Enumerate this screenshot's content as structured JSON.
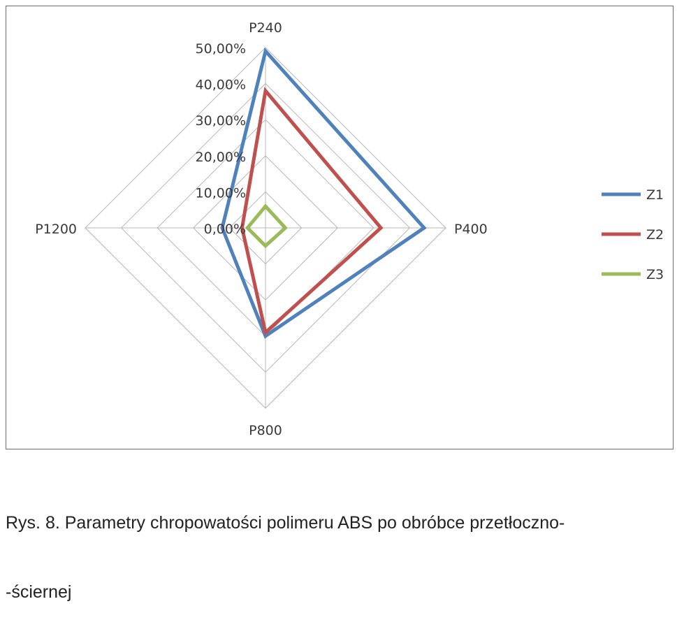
{
  "chart_data": {
    "type": "radar",
    "title": "",
    "categories": [
      "P240",
      "P400",
      "P800",
      "P1200"
    ],
    "series": [
      {
        "name": "Z1",
        "values": [
          49.0,
          44.0,
          30.0,
          12.0
        ],
        "color": "#4F81BD"
      },
      {
        "name": "Z2",
        "values": [
          38.0,
          32.0,
          29.0,
          6.5
        ],
        "color": "#C0504D"
      },
      {
        "name": "Z3",
        "values": [
          6.0,
          5.5,
          5.0,
          5.0
        ],
        "color": "#9BBB59"
      }
    ],
    "radial_ticks": [
      "0,00%",
      "10,00%",
      "20,00%",
      "30,00%",
      "40,00%",
      "50,00%"
    ],
    "rlim": [
      0,
      50
    ],
    "legend": "right",
    "grid": true
  },
  "caption": {
    "line1": "Rys. 8. Parametry chropowatości polimeru ABS po obróbce przetłoczno-",
    "line2": "-ściernej"
  }
}
